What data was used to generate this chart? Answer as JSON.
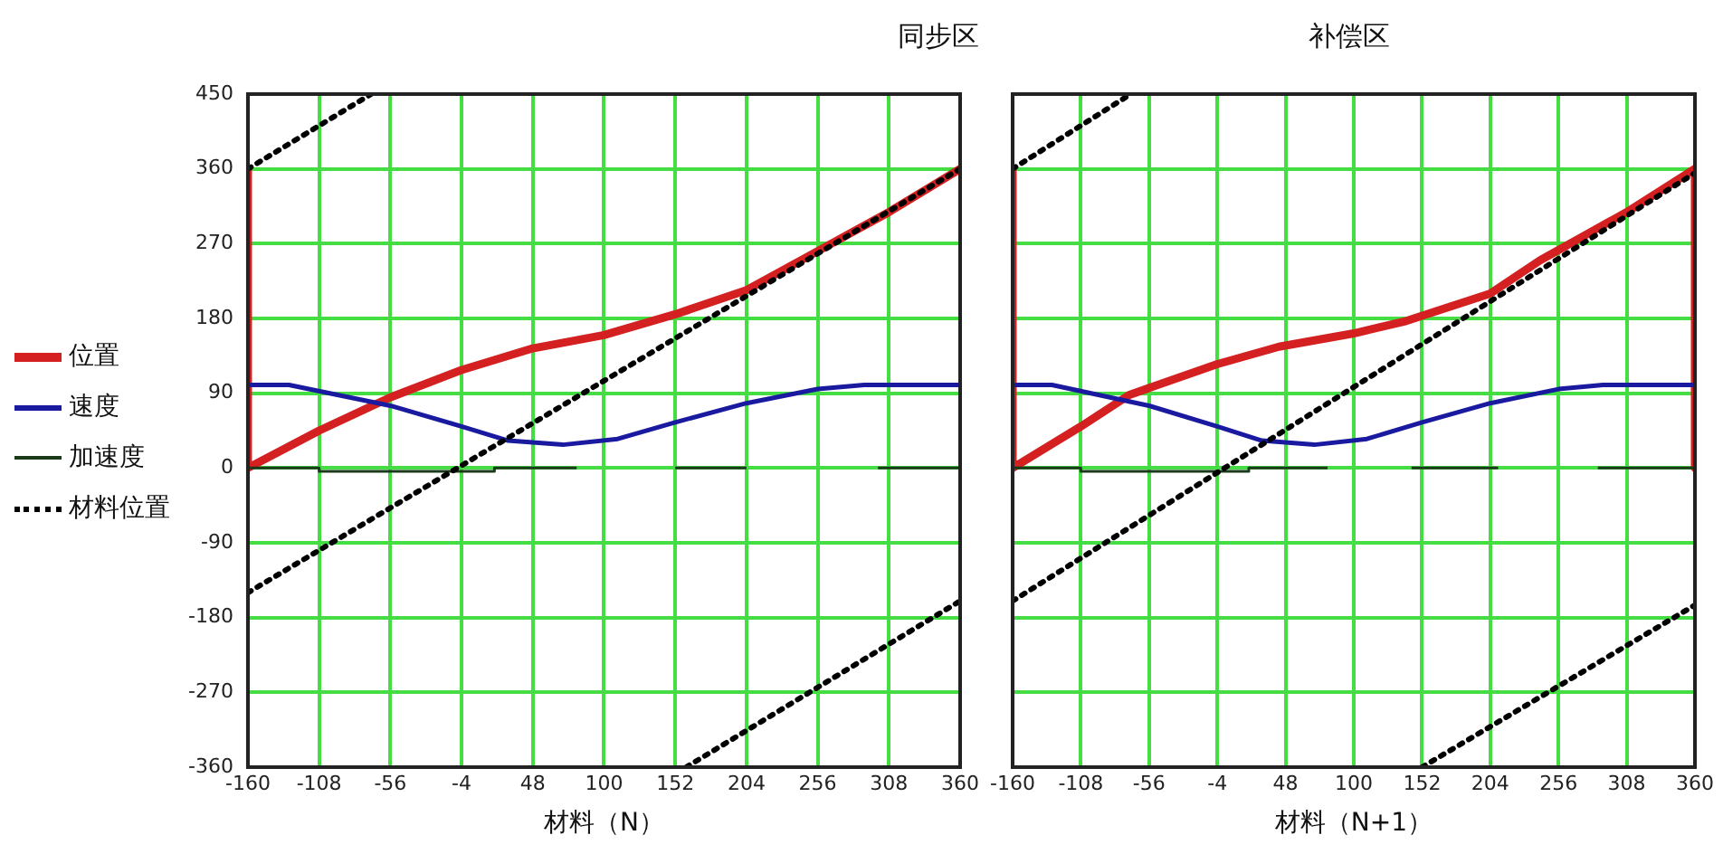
{
  "chart_data": [
    {
      "type": "line",
      "title": "同步区",
      "xlabel": "材料（N）",
      "xlim": [
        -160,
        360
      ],
      "xticks": [
        -160,
        -108,
        -56,
        -4,
        48,
        100,
        152,
        204,
        256,
        308,
        360
      ],
      "ylim": [
        -360,
        450
      ],
      "yticks": [
        -360,
        -270,
        -180,
        -90,
        0,
        90,
        180,
        270,
        360,
        450
      ],
      "grid": true,
      "legend": "left",
      "marker": "none",
      "series": [
        {
          "name": "位置",
          "color": "#d42020",
          "x": [
            -160,
            -160,
            -108,
            -56,
            -4,
            48,
            100,
            152,
            204,
            256,
            308,
            360
          ],
          "values": [
            360,
            0,
            45,
            85,
            118,
            144,
            160,
            185,
            214,
            261,
            308,
            360
          ]
        },
        {
          "name": "速度",
          "color": "#1a1aa0",
          "x": [
            -160,
            -130,
            -56,
            -4,
            30,
            70,
            110,
            152,
            204,
            256,
            290,
            360
          ],
          "values": [
            100,
            100,
            75,
            50,
            33,
            28,
            35,
            55,
            78,
            95,
            100,
            100
          ]
        },
        {
          "name": "加速度",
          "color": "#1a3a1a",
          "x": [
            -160,
            -108,
            -108,
            20,
            20,
            80
          ],
          "values": [
            0,
            0,
            -4,
            -4,
            0,
            0
          ]
        },
        {
          "color": "#1a3a1a",
          "x": [
            152,
            204
          ],
          "values": [
            0,
            0
          ]
        },
        {
          "color": "#1a3a1a",
          "x": [
            300,
            360
          ],
          "values": [
            0,
            0
          ]
        },
        {
          "name": "材料位置",
          "color": "#000000",
          "line_style": "dotted",
          "x": [
            -160,
            360
          ],
          "values": [
            -150,
            360
          ]
        },
        {
          "color": "#000000",
          "line_style": "dotted",
          "x": [
            -160,
            -70
          ],
          "values": [
            360,
            450
          ]
        },
        {
          "color": "#000000",
          "line_style": "dotted",
          "x": [
            160,
            360
          ],
          "values": [
            -360,
            -160
          ]
        }
      ]
    },
    {
      "type": "line",
      "title": "补偿区",
      "xlabel": "材料（N+1）",
      "xlim": [
        -160,
        360
      ],
      "xticks": [
        -160,
        -108,
        -56,
        -4,
        48,
        100,
        152,
        204,
        256,
        308,
        360
      ],
      "ylim": [
        -360,
        450
      ],
      "yticks": [
        -360,
        -270,
        -180,
        -90,
        0,
        90,
        180,
        270,
        360,
        450
      ],
      "grid": true,
      "tick_labels": "x",
      "marker": "none",
      "series": [
        {
          "color": "#d42020",
          "x": [
            -160,
            -160,
            -108,
            -71,
            -4,
            43,
            100,
            140,
            204,
            242,
            308,
            360,
            360
          ],
          "values": [
            360,
            0,
            50,
            88,
            125,
            146,
            162,
            177,
            210,
            250,
            308,
            360,
            0
          ]
        },
        {
          "color": "#1a1aa0",
          "x": [
            -160,
            -130,
            -56,
            -4,
            30,
            70,
            110,
            152,
            204,
            256,
            290,
            360
          ],
          "values": [
            100,
            100,
            75,
            50,
            33,
            28,
            35,
            55,
            78,
            95,
            100,
            100
          ]
        },
        {
          "color": "#1a3a1a",
          "x": [
            -160,
            -108,
            -108,
            20,
            20,
            80
          ],
          "values": [
            0,
            0,
            -4,
            -4,
            0,
            0
          ]
        },
        {
          "color": "#1a3a1a",
          "x": [
            144,
            210
          ],
          "values": [
            0,
            0
          ]
        },
        {
          "color": "#1a3a1a",
          "x": [
            286,
            360
          ],
          "values": [
            0,
            0
          ]
        },
        {
          "color": "#000000",
          "line_style": "dotted",
          "x": [
            -160,
            360
          ],
          "values": [
            -160,
            355
          ]
        },
        {
          "color": "#000000",
          "line_style": "dotted",
          "x": [
            -160,
            -70
          ],
          "values": [
            360,
            450
          ]
        },
        {
          "color": "#000000",
          "line_style": "dotted",
          "x": [
            152,
            360
          ],
          "values": [
            -360,
            -165
          ]
        }
      ]
    }
  ]
}
